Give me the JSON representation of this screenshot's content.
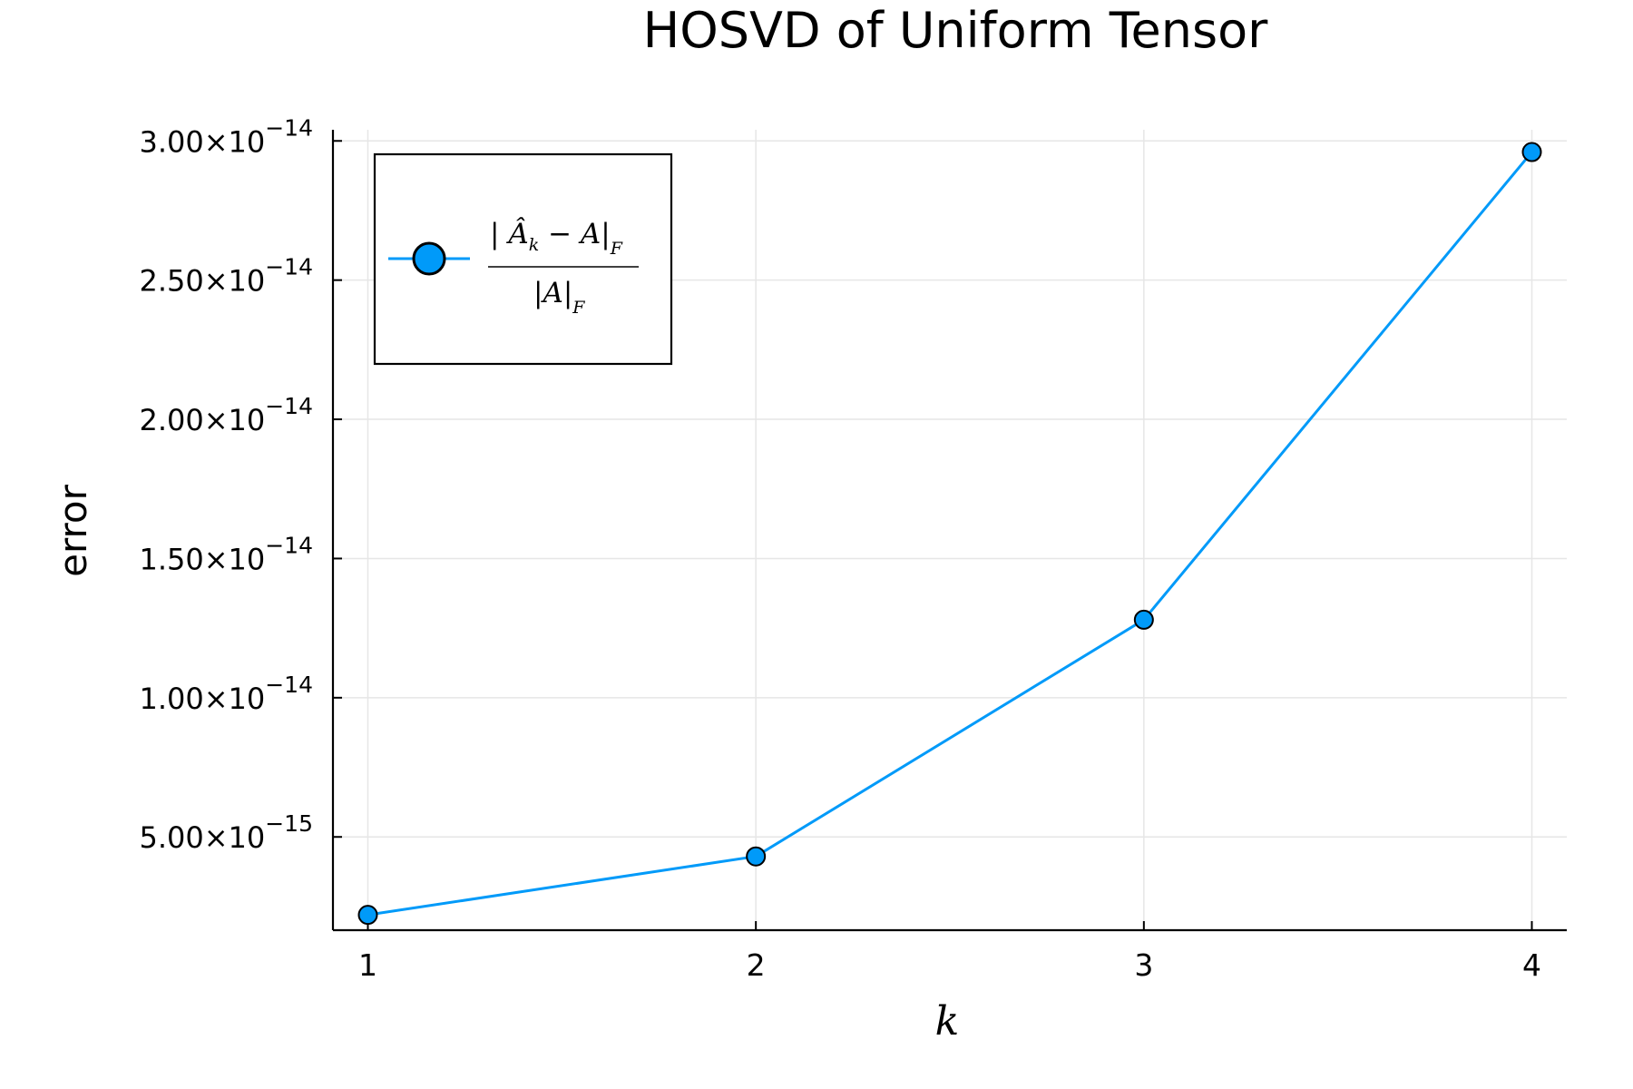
{
  "chart_data": {
    "type": "line",
    "title": "HOSVD of Uniform Tensor",
    "xlabel": "k",
    "ylabel": "error",
    "x": [
      1,
      2,
      3,
      4
    ],
    "series": [
      {
        "name": "| Â_k − A|_F / |A|_F",
        "values": [
          2.2e-15,
          4.3e-15,
          1.28e-14,
          2.96e-14
        ],
        "color": "#009af9",
        "marker": "circle"
      }
    ],
    "xticks": [
      "1",
      "2",
      "3",
      "4"
    ],
    "yticks": [
      {
        "value": 5e-15,
        "mantissa": "5.00×10",
        "exponent": "−15"
      },
      {
        "value": 1e-14,
        "mantissa": "1.00×10",
        "exponent": "−14"
      },
      {
        "value": 1.5e-14,
        "mantissa": "1.50×10",
        "exponent": "−14"
      },
      {
        "value": 2e-14,
        "mantissa": "2.00×10",
        "exponent": "−14"
      },
      {
        "value": 2.5e-14,
        "mantissa": "2.50×10",
        "exponent": "−14"
      },
      {
        "value": 3e-14,
        "mantissa": "3.00×10",
        "exponent": "−14"
      }
    ],
    "xlim": [
      0.91,
      4.09
    ],
    "ylim": [
      1.65e-15,
      3.04e-14
    ],
    "grid": true,
    "legend_position": "top-left",
    "legend": {
      "numerator_left": "| ",
      "numerator_hat": "Â",
      "numerator_sub": "k",
      "numerator_mid": " − A|",
      "numerator_sub2": "F",
      "denominator": "|A|",
      "denominator_sub": "F"
    }
  }
}
